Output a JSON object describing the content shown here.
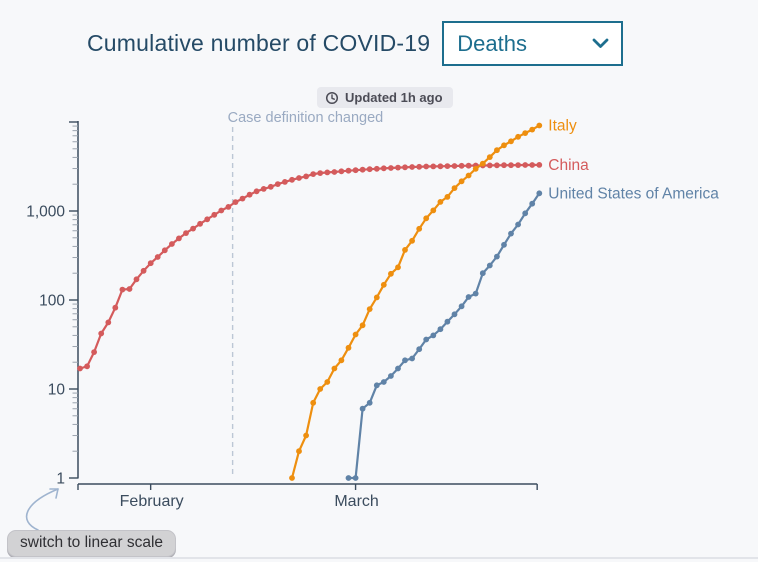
{
  "header": {
    "title": "Cumulative number of COVID-19",
    "metric_dropdown": {
      "value": "Deaths"
    }
  },
  "status": {
    "updated_label": "Updated 1h ago"
  },
  "controls": {
    "scale_toggle_label": "switch to linear scale"
  },
  "colors": {
    "title": "#254a66",
    "accent": "#1d6e8e",
    "axis": "#3b4c5e",
    "minor_tick": "#9ba3ae",
    "annotation": "#9aaac2",
    "dashed_line": "#bcc7d5",
    "background": "#f7f8fa"
  },
  "chart_data": {
    "type": "line",
    "title": "Cumulative number of COVID-19 Deaths",
    "y_axis": {
      "scale": "log",
      "range": [
        1,
        10000
      ],
      "tick_values": [
        1,
        10,
        100,
        1000
      ],
      "tick_labels": [
        "1",
        "10",
        "100",
        "1,000"
      ]
    },
    "x_axis": {
      "type": "time",
      "tick_labels": [
        "February",
        "March"
      ],
      "tick_day_indices": [
        10,
        39
      ],
      "domain_day_range": [
        0,
        64.7
      ]
    },
    "annotation": {
      "label": "Case definition changed",
      "x_index": 21.6
    },
    "legend_position": "right-of-line-end",
    "grid": false,
    "series": [
      {
        "name": "China",
        "color": "#d45b5c",
        "start_index": 0,
        "values": [
          17,
          18,
          26,
          42,
          56,
          82,
          131,
          133,
          171,
          213,
          259,
          304,
          362,
          426,
          492,
          564,
          634,
          719,
          806,
          906,
          1013,
          1113,
          1259,
          1380,
          1524,
          1666,
          1772,
          1870,
          2006,
          2121,
          2239,
          2348,
          2445,
          2595,
          2665,
          2717,
          2746,
          2790,
          2837,
          2872,
          2914,
          2947,
          2983,
          3015,
          3044,
          3072,
          3100,
          3123,
          3139,
          3161,
          3172,
          3180,
          3194,
          3203,
          3217,
          3230,
          3241,
          3249,
          3253,
          3259,
          3274,
          3274,
          3281,
          3285,
          3291,
          3296
        ]
      },
      {
        "name": "Italy",
        "color": "#ee8f0f",
        "start_index": 30,
        "values": [
          1,
          2,
          3,
          7,
          10,
          12,
          17,
          21,
          29,
          41,
          52,
          79,
          107,
          148,
          197,
          233,
          366,
          463,
          631,
          827,
          1016,
          1266,
          1441,
          1809,
          2158,
          2503,
          2978,
          3405,
          4032,
          4825,
          5476,
          6077,
          6820,
          7503,
          8215,
          9134
        ]
      },
      {
        "name": "United States of America",
        "color": "#6083a7",
        "start_index": 38,
        "values": [
          1,
          1,
          6,
          7,
          11,
          12,
          14,
          17,
          21,
          22,
          28,
          36,
          40,
          47,
          57,
          69,
          85,
          108,
          118,
          200,
          244,
          307,
          417,
          557,
          706,
          942,
          1209,
          1581
        ]
      }
    ]
  }
}
